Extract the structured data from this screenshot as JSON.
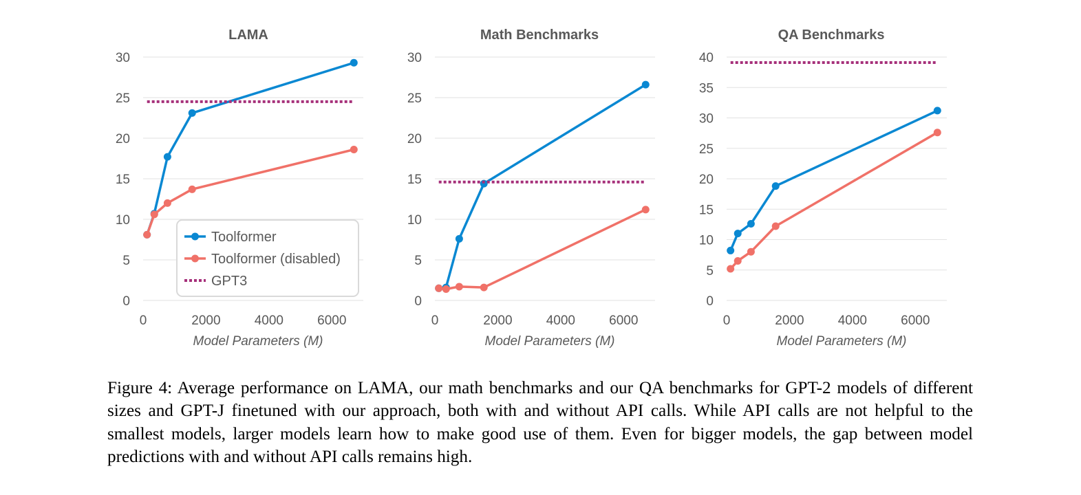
{
  "colors": {
    "toolformer": "#0a88d2",
    "toolformer_disabled": "#f07168",
    "gpt3": "#a6307a",
    "grid": "#e2e2e2",
    "text": "#595959"
  },
  "legend": {
    "items": [
      {
        "label": "Toolformer",
        "series": "toolformer",
        "style": "line-marker"
      },
      {
        "label": "Toolformer (disabled)",
        "series": "toolformer_disabled",
        "style": "line-marker"
      },
      {
        "label": "GPT3",
        "series": "gpt3",
        "style": "dotted"
      }
    ]
  },
  "chart_data": [
    {
      "type": "line",
      "title": "LAMA",
      "xlabel": "Model Parameters (M)",
      "ylabel": "",
      "xlim": [
        0,
        7000
      ],
      "ylim": [
        0,
        30
      ],
      "xticks": [
        0,
        2000,
        4000,
        6000
      ],
      "yticks": [
        0,
        5,
        10,
        15,
        20,
        25,
        30
      ],
      "grid": "horizontal",
      "legend": "bottom-right",
      "series": [
        {
          "name": "Toolformer",
          "key": "toolformer",
          "x": [
            124,
            355,
            774,
            1558,
            6700
          ],
          "y": [
            8.1,
            10.7,
            17.7,
            23.1,
            29.3
          ]
        },
        {
          "name": "Toolformer (disabled)",
          "key": "toolformer_disabled",
          "x": [
            124,
            355,
            774,
            1558,
            6700
          ],
          "y": [
            8.1,
            10.6,
            12.0,
            13.7,
            18.6
          ]
        },
        {
          "name": "GPT3",
          "key": "gpt3",
          "x": [
            124,
            6700
          ],
          "y": [
            24.5,
            24.5
          ],
          "dashed": true
        }
      ]
    },
    {
      "type": "line",
      "title": "Math Benchmarks",
      "xlabel": "Model Parameters (M)",
      "ylabel": "",
      "xlim": [
        0,
        7000
      ],
      "ylim": [
        0,
        30
      ],
      "xticks": [
        0,
        2000,
        4000,
        6000
      ],
      "yticks": [
        0,
        5,
        10,
        15,
        20,
        25,
        30
      ],
      "grid": "horizontal",
      "series": [
        {
          "name": "Toolformer",
          "key": "toolformer",
          "x": [
            124,
            355,
            774,
            1558,
            6700
          ],
          "y": [
            1.5,
            1.6,
            7.6,
            14.4,
            26.6
          ]
        },
        {
          "name": "Toolformer (disabled)",
          "key": "toolformer_disabled",
          "x": [
            124,
            355,
            774,
            1558,
            6700
          ],
          "y": [
            1.5,
            1.4,
            1.7,
            1.6,
            11.2
          ]
        },
        {
          "name": "GPT3",
          "key": "gpt3",
          "x": [
            124,
            6700
          ],
          "y": [
            14.6,
            14.6
          ],
          "dashed": true
        }
      ]
    },
    {
      "type": "line",
      "title": "QA Benchmarks",
      "xlabel": "Model Parameters (M)",
      "ylabel": "",
      "xlim": [
        0,
        7000
      ],
      "ylim": [
        0,
        40
      ],
      "xticks": [
        0,
        2000,
        4000,
        6000
      ],
      "yticks": [
        0,
        5,
        10,
        15,
        20,
        25,
        30,
        35,
        40
      ],
      "grid": "horizontal",
      "series": [
        {
          "name": "Toolformer",
          "key": "toolformer",
          "x": [
            124,
            355,
            774,
            1558,
            6700
          ],
          "y": [
            8.2,
            11.0,
            12.6,
            18.8,
            31.2
          ]
        },
        {
          "name": "Toolformer (disabled)",
          "key": "toolformer_disabled",
          "x": [
            124,
            355,
            774,
            1558,
            6700
          ],
          "y": [
            5.2,
            6.5,
            8.0,
            12.2,
            27.6
          ]
        },
        {
          "name": "GPT3",
          "key": "gpt3",
          "x": [
            124,
            6700
          ],
          "y": [
            39.1,
            39.1
          ],
          "dashed": true
        }
      ]
    }
  ],
  "caption": "Figure 4: Average performance on LAMA, our math benchmarks and our QA benchmarks for GPT-2 models of different sizes and GPT-J finetuned with our approach, both with and without API calls. While API calls are not helpful to the smallest models, larger models learn how to make good use of them. Even for bigger models, the gap between model predictions with and without API calls remains high."
}
